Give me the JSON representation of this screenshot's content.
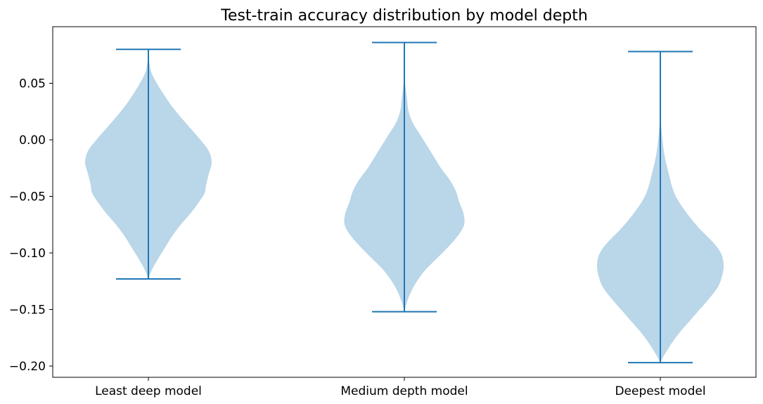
{
  "chart_data": {
    "type": "violin",
    "title": "Test-train accuracy distribution by model depth",
    "xlabel": "",
    "ylabel": "",
    "ylim": [
      -0.21,
      0.1
    ],
    "yticks": [
      -0.2,
      -0.15,
      -0.1,
      -0.05,
      0.0,
      0.05
    ],
    "ytick_labels": [
      "−0.20",
      "−0.15",
      "−0.10",
      "−0.05",
      "0.00",
      "0.05"
    ],
    "categories": [
      "Least deep model",
      "Medium depth model",
      "Deepest model"
    ],
    "violins": [
      {
        "category": "Least deep model",
        "min": -0.123,
        "max": 0.08,
        "profile": [
          [
            -0.123,
            0.0
          ],
          [
            -0.115,
            0.05
          ],
          [
            -0.105,
            0.14
          ],
          [
            -0.095,
            0.24
          ],
          [
            -0.085,
            0.34
          ],
          [
            -0.075,
            0.46
          ],
          [
            -0.065,
            0.6
          ],
          [
            -0.055,
            0.72
          ],
          [
            -0.047,
            0.8
          ],
          [
            -0.04,
            0.82
          ],
          [
            -0.03,
            0.86
          ],
          [
            -0.02,
            0.9
          ],
          [
            -0.01,
            0.86
          ],
          [
            0.0,
            0.74
          ],
          [
            0.01,
            0.6
          ],
          [
            0.02,
            0.46
          ],
          [
            0.03,
            0.33
          ],
          [
            0.04,
            0.22
          ],
          [
            0.05,
            0.12
          ],
          [
            0.06,
            0.04
          ],
          [
            0.07,
            0.01
          ],
          [
            0.08,
            0.0
          ]
        ]
      },
      {
        "category": "Medium depth model",
        "min": -0.152,
        "max": 0.086,
        "profile": [
          [
            -0.152,
            0.0
          ],
          [
            -0.145,
            0.03
          ],
          [
            -0.135,
            0.09
          ],
          [
            -0.125,
            0.18
          ],
          [
            -0.115,
            0.3
          ],
          [
            -0.105,
            0.46
          ],
          [
            -0.095,
            0.62
          ],
          [
            -0.085,
            0.76
          ],
          [
            -0.075,
            0.85
          ],
          [
            -0.065,
            0.84
          ],
          [
            -0.055,
            0.78
          ],
          [
            -0.045,
            0.73
          ],
          [
            -0.035,
            0.64
          ],
          [
            -0.025,
            0.52
          ],
          [
            -0.015,
            0.42
          ],
          [
            -0.005,
            0.32
          ],
          [
            0.005,
            0.22
          ],
          [
            0.015,
            0.12
          ],
          [
            0.025,
            0.06
          ],
          [
            0.035,
            0.04
          ],
          [
            0.045,
            0.02
          ],
          [
            0.055,
            0.006
          ],
          [
            0.07,
            0.002
          ],
          [
            0.086,
            0.0
          ]
        ]
      },
      {
        "category": "Deepest model",
        "min": -0.197,
        "max": 0.078,
        "profile": [
          [
            -0.197,
            0.0
          ],
          [
            -0.19,
            0.06
          ],
          [
            -0.18,
            0.16
          ],
          [
            -0.17,
            0.28
          ],
          [
            -0.16,
            0.42
          ],
          [
            -0.15,
            0.56
          ],
          [
            -0.14,
            0.7
          ],
          [
            -0.13,
            0.82
          ],
          [
            -0.12,
            0.88
          ],
          [
            -0.11,
            0.9
          ],
          [
            -0.1,
            0.86
          ],
          [
            -0.09,
            0.74
          ],
          [
            -0.08,
            0.58
          ],
          [
            -0.07,
            0.44
          ],
          [
            -0.06,
            0.32
          ],
          [
            -0.05,
            0.22
          ],
          [
            -0.04,
            0.16
          ],
          [
            -0.03,
            0.12
          ],
          [
            -0.02,
            0.08
          ],
          [
            -0.01,
            0.05
          ],
          [
            0.0,
            0.03
          ],
          [
            0.01,
            0.015
          ],
          [
            0.02,
            0.005
          ],
          [
            0.03,
            0.0
          ],
          [
            0.078,
            0.0
          ]
        ]
      }
    ],
    "colors": {
      "violin_fill": "#bad6e9",
      "line": "#1f77b4",
      "axis": "#000000"
    },
    "grid": false,
    "legend": "none"
  }
}
